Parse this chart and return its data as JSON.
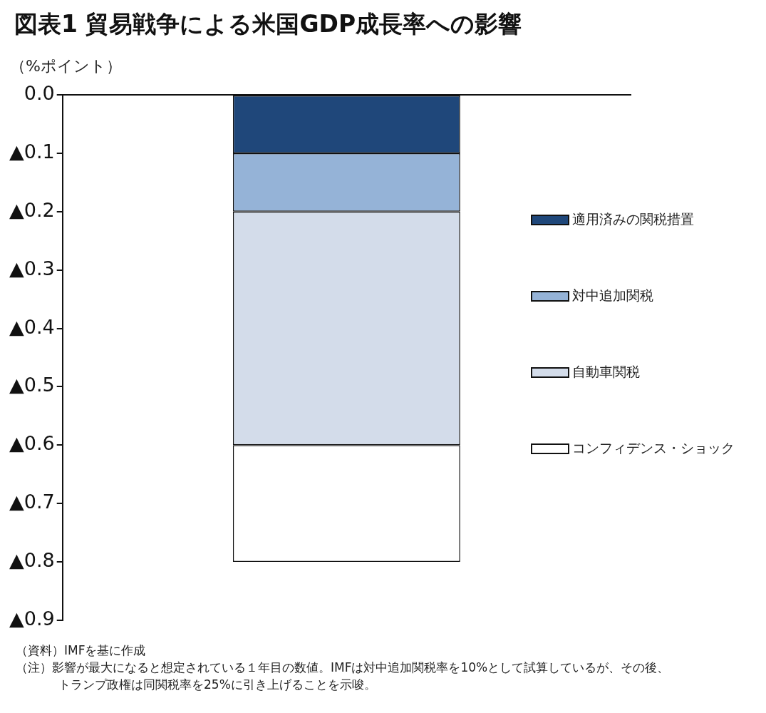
{
  "chart_data": {
    "type": "bar",
    "title": "図表1 貿易戦争による米国GDP成長率への影響",
    "ylabel": "（%ポイント）",
    "categories": [
      null
    ],
    "stacked": true,
    "series": [
      {
        "name": "適用済みの関税措置",
        "color": "#1f477a",
        "values": [
          -0.1
        ]
      },
      {
        "name": "対中追加関税",
        "color": "#95b3d7",
        "values": [
          -0.1
        ]
      },
      {
        "name": "自動車関税",
        "color": "#d3dcea",
        "values": [
          -0.4
        ]
      },
      {
        "name": "コンフィデンス・ショック",
        "color": "#ffffff",
        "values": [
          -0.2
        ]
      }
    ],
    "ylim": [
      -0.9,
      0
    ],
    "yticks": [
      {
        "value": 0,
        "label": "0.0"
      },
      {
        "value": -0.1,
        "label": "▲0.1"
      },
      {
        "value": -0.2,
        "label": "▲0.2"
      },
      {
        "value": -0.3,
        "label": "▲0.3"
      },
      {
        "value": -0.4,
        "label": "▲0.4"
      },
      {
        "value": -0.5,
        "label": "▲0.5"
      },
      {
        "value": -0.6,
        "label": "▲0.6"
      },
      {
        "value": -0.7,
        "label": "▲0.7"
      },
      {
        "value": -0.8,
        "label": "▲0.8"
      },
      {
        "value": -0.9,
        "label": "▲0.9"
      }
    ],
    "tick_labels": "y",
    "grid": false,
    "legend": "right",
    "annotations": [
      "（資料）IMFを基に作成",
      "（注）影響が最大になると想定されている１年目の数値。IMFは対中追加関税率を10%として試算しているが、その後、トランプ政権は同関税率を25%に引き上げることを示唆。"
    ]
  }
}
